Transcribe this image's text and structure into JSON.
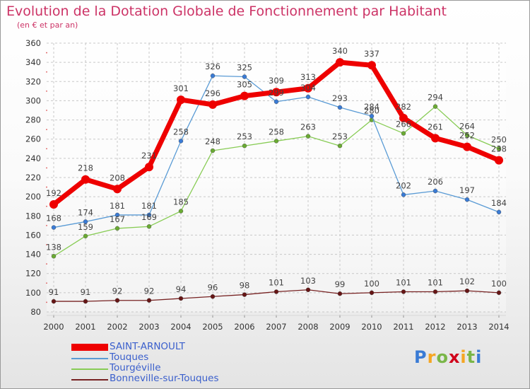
{
  "chart_data": {
    "type": "line",
    "title": "Evolution de la Dotation Globale de Fonctionnement par Habitant",
    "subtitle": "(en € et par an)",
    "x": [
      "2000",
      "2001",
      "2002",
      "2003",
      "2004",
      "2005",
      "2006",
      "2007",
      "2008",
      "2009",
      "2010",
      "2011",
      "2012",
      "2013",
      "2014"
    ],
    "ylim": [
      80,
      360
    ],
    "yticks": [
      80,
      100,
      120,
      140,
      160,
      180,
      200,
      220,
      240,
      260,
      280,
      300,
      320,
      340,
      360
    ],
    "grid": true,
    "legend_position": "bottom-left",
    "series": [
      {
        "name": "SAINT-ARNOULT",
        "color": "#ee0000",
        "values": [
          192,
          218,
          208,
          231,
          301,
          296,
          305,
          309,
          313,
          340,
          337,
          282,
          261,
          252,
          238
        ],
        "labels": [
          "192",
          "218",
          "208",
          "231",
          "301",
          "296",
          "305",
          "309",
          "313",
          "340",
          "337",
          "282",
          "261",
          "252",
          "238"
        ]
      },
      {
        "name": "Touques",
        "color": "#5a9bd5",
        "values": [
          168,
          174,
          181,
          181,
          258,
          326,
          325,
          299,
          304,
          293,
          284,
          202,
          206,
          197,
          184
        ],
        "labels": [
          "168",
          "174",
          "181",
          "181",
          "258",
          "326",
          "325",
          "299",
          "304",
          "293",
          "284",
          "202",
          "206",
          "197",
          "184"
        ]
      },
      {
        "name": "Tourgéville",
        "color": "#88cc55",
        "values": [
          138,
          159,
          167,
          169,
          185,
          248,
          253,
          258,
          263,
          253,
          280,
          266,
          294,
          264,
          250
        ],
        "labels": [
          "138",
          "159",
          "167",
          "169",
          "185",
          "248",
          "253",
          "258",
          "263",
          "253",
          "280",
          "266",
          "294",
          "264",
          "250"
        ]
      },
      {
        "name": "Bonneville-sur-Touques",
        "color": "#772222",
        "values": [
          91,
          91,
          92,
          92,
          94,
          96,
          98,
          101,
          103,
          99,
          100,
          101,
          101,
          102,
          100
        ],
        "labels": [
          "91",
          "91",
          "92",
          "92",
          "94",
          "96",
          "98",
          "101",
          "103",
          "99",
          "100",
          "101",
          "101",
          "102",
          "100"
        ]
      }
    ]
  },
  "legend": {
    "items": [
      {
        "label": "SAINT-ARNOULT",
        "color": "#ee0000"
      },
      {
        "label": "Touques",
        "color": "#5a9bd5"
      },
      {
        "label": "Tourgéville",
        "color": "#88cc55"
      },
      {
        "label": "Bonneville-sur-Touques",
        "color": "#772222"
      }
    ]
  },
  "logo": {
    "text": "Proxiti",
    "letter_colors": [
      "#3a7bd5",
      "#f5a623",
      "#7ab648",
      "#d0021b",
      "#f5a623",
      "#7ab648",
      "#3a7bd5"
    ]
  }
}
